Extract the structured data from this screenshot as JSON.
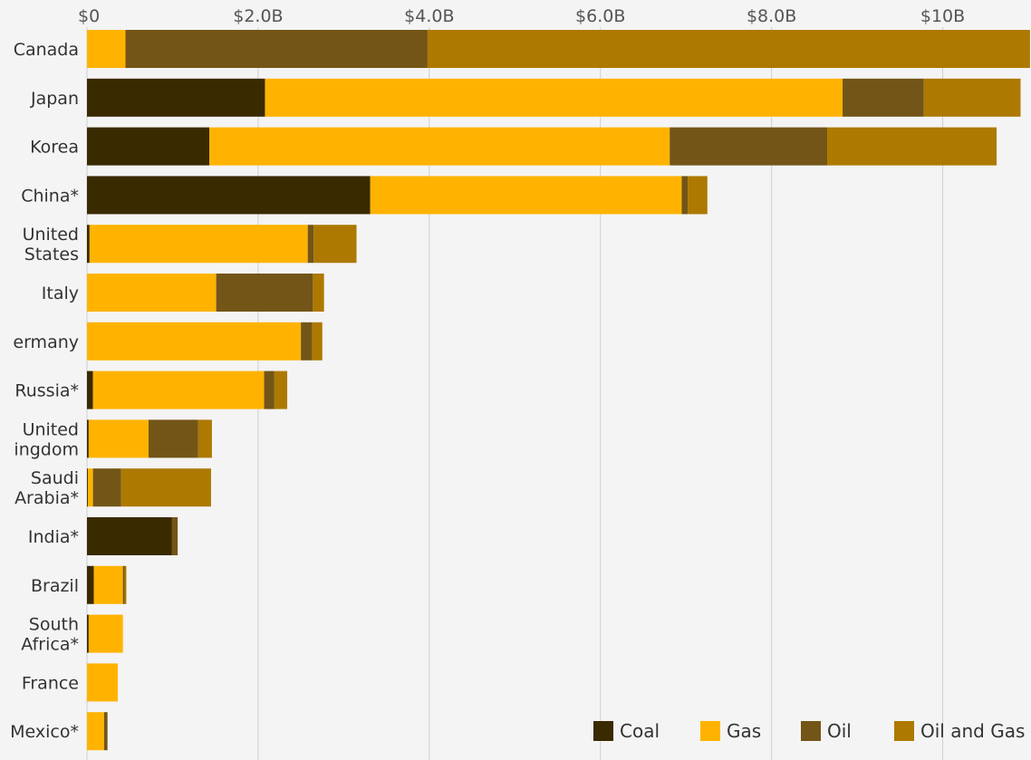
{
  "chart_data": {
    "type": "bar",
    "orientation": "horizontal",
    "stacked": true,
    "title": "",
    "xlabel": "",
    "ylabel": "",
    "xlim": [
      0,
      11
    ],
    "grid": true,
    "legend_position": "bottom-right",
    "x_ticks": [
      {
        "value": 0,
        "label": "$0"
      },
      {
        "value": 2,
        "label": "$2.0B"
      },
      {
        "value": 4,
        "label": "$4.0B"
      },
      {
        "value": 6,
        "label": "$6.0B"
      },
      {
        "value": 8,
        "label": "$8.0B"
      },
      {
        "value": 10,
        "label": "$10B"
      }
    ],
    "categories": [
      [
        "Canada"
      ],
      [
        "Japan"
      ],
      [
        "Korea"
      ],
      [
        "China*"
      ],
      [
        "United",
        "States"
      ],
      [
        "Italy"
      ],
      [
        "ermany"
      ],
      [
        "Russia*"
      ],
      [
        "United",
        "ingdom"
      ],
      [
        "Saudi",
        "Arabia*"
      ],
      [
        "India*"
      ],
      [
        "Brazil"
      ],
      [
        "South",
        "Africa*"
      ],
      [
        "France"
      ],
      [
        "Mexico*"
      ]
    ],
    "series": [
      {
        "name": "Coal",
        "color": "#3a2a00",
        "values": [
          0,
          2.08,
          1.43,
          3.31,
          0.03,
          0,
          0,
          0.07,
          0.02,
          0.01,
          0.99,
          0.08,
          0.02,
          0,
          0
        ]
      },
      {
        "name": "Gas",
        "color": "#ffb300",
        "values": [
          0.45,
          6.75,
          5.38,
          3.64,
          2.55,
          1.51,
          2.5,
          2.0,
          0.7,
          0.06,
          0,
          0.34,
          0.4,
          0.36,
          0.2
        ]
      },
      {
        "name": "Oil",
        "color": "#735518",
        "values": [
          3.53,
          0.95,
          1.84,
          0.07,
          0.07,
          1.13,
          0.13,
          0.12,
          0.58,
          0.33,
          0.07,
          0.02,
          0,
          0,
          0.04
        ]
      },
      {
        "name": "Oil and Gas",
        "color": "#ad7900",
        "values": [
          7.04,
          1.13,
          1.98,
          0.23,
          0.5,
          0.13,
          0.12,
          0.15,
          0.16,
          1.05,
          0,
          0.02,
          0,
          0,
          0
        ]
      }
    ]
  }
}
